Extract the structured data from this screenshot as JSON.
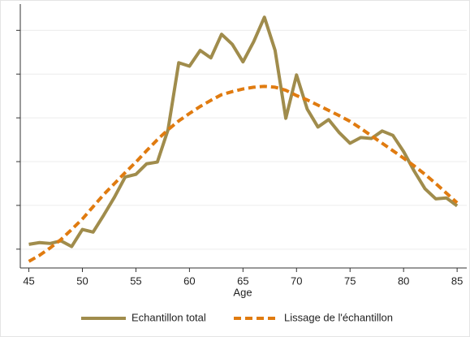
{
  "chart_data": {
    "type": "line",
    "xlabel": "Age",
    "x": [
      45,
      46,
      47,
      48,
      49,
      50,
      51,
      52,
      53,
      54,
      55,
      56,
      57,
      58,
      59,
      60,
      61,
      62,
      63,
      64,
      65,
      66,
      67,
      68,
      69,
      70,
      71,
      72,
      73,
      74,
      75,
      76,
      77,
      78,
      79,
      80,
      81,
      82,
      83,
      84,
      85
    ],
    "series": [
      {
        "name": "Echantillon total",
        "color": "#a08c4c",
        "dash": false,
        "values": [
          0.11,
          0.15,
          0.13,
          0.19,
          0.06,
          0.45,
          0.39,
          0.78,
          1.19,
          1.65,
          1.71,
          1.95,
          1.99,
          2.73,
          4.26,
          4.18,
          4.54,
          4.37,
          4.91,
          4.68,
          4.28,
          4.74,
          5.3,
          4.54,
          2.99,
          3.98,
          3.2,
          2.79,
          2.96,
          2.66,
          2.42,
          2.55,
          2.53,
          2.7,
          2.6,
          2.23,
          1.78,
          1.38,
          1.15,
          1.17,
          0.99
        ]
      },
      {
        "name": "Lissage de l'échantillon",
        "color": "#e07b10",
        "dash": true,
        "values": [
          -0.28,
          -0.14,
          0.03,
          0.22,
          0.45,
          0.69,
          0.97,
          1.25,
          1.5,
          1.75,
          1.99,
          2.25,
          2.5,
          2.73,
          2.93,
          3.1,
          3.26,
          3.4,
          3.53,
          3.6,
          3.66,
          3.7,
          3.72,
          3.7,
          3.63,
          3.51,
          3.41,
          3.29,
          3.17,
          3.05,
          2.92,
          2.76,
          2.59,
          2.42,
          2.25,
          2.08,
          1.9,
          1.71,
          1.5,
          1.28,
          1.06
        ]
      }
    ],
    "xlim": [
      44.2,
      85.9
    ],
    "xticks": [
      45,
      50,
      55,
      60,
      65,
      70,
      75,
      80,
      85
    ],
    "ylim": [
      -0.43,
      5.6
    ],
    "yticks": [
      0,
      1,
      2,
      3,
      4,
      5
    ],
    "grid": true,
    "legend": "bottom"
  }
}
